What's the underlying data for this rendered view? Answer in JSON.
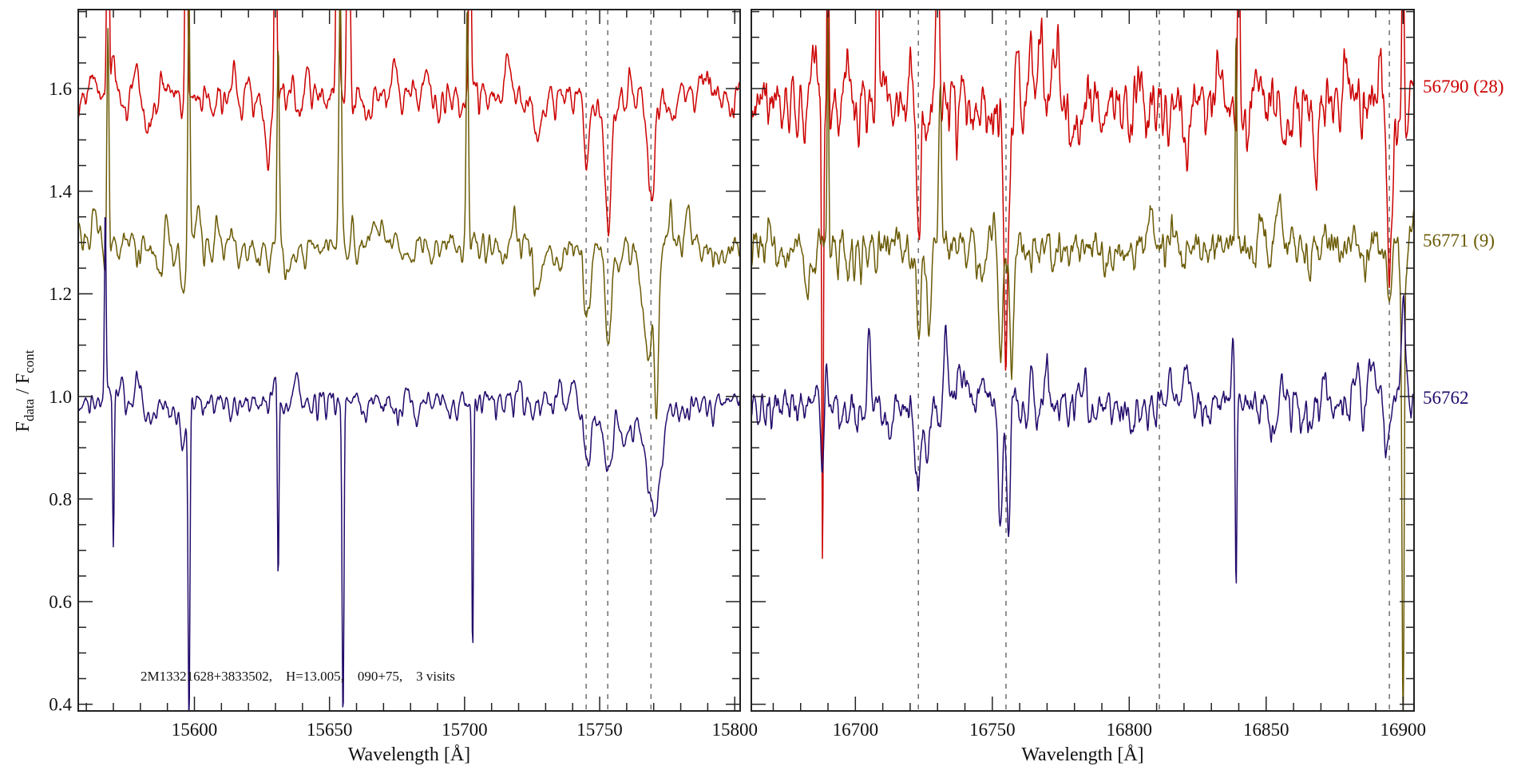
{
  "chart_data": {
    "type": "line",
    "ylabel_main": "F",
    "ylabel_sub1": "data",
    "ylabel_sep": " / F",
    "ylabel_sub2": "cont",
    "ylim": [
      0.387,
      1.754
    ],
    "yticks": [
      0.4,
      0.6,
      0.8,
      1.0,
      1.2,
      1.4,
      1.6
    ],
    "ytick_labels": [
      "0.4",
      "0.6",
      "0.8",
      "1.0",
      "1.2",
      "1.4",
      "1.6"
    ],
    "annotation": "2M13321628+3833502,    H=13.005,    090+75,    3 visits",
    "panels": [
      {
        "xlabel": "Wavelength [Å]",
        "xlim": [
          15557,
          15802
        ],
        "xticks": [
          15600,
          15650,
          15700,
          15750,
          15800
        ],
        "xtick_labels": [
          "15600",
          "15650",
          "15700",
          "15750",
          "15800"
        ],
        "marker_lines": [
          15745,
          15753,
          15769
        ]
      },
      {
        "xlabel": "Wavelength [Å]",
        "xlim": [
          16662,
          16904
        ],
        "xticks": [
          16700,
          16750,
          16800,
          16850,
          16900
        ],
        "xtick_labels": [
          "16700",
          "16750",
          "16800",
          "16850",
          "16900"
        ],
        "marker_lines": [
          16723,
          16755,
          16811,
          16895
        ]
      }
    ],
    "series": [
      {
        "name": "56790 (28)",
        "color": "#cc0000",
        "offset": 1.6,
        "seed": 11,
        "noise": [
          0.012,
          0.035
        ],
        "dip_depth": [
          0.05,
          0.09
        ],
        "features": [
          [
            [
              15568,
              0.6,
              0.4
            ],
            [
              15597,
              0.6,
              0.4
            ],
            [
              15630,
              0.6,
              0.4
            ],
            [
              15653,
              0.6,
              0.5
            ],
            [
              15657,
              0.6,
              0.5
            ],
            [
              15702,
              0.5,
              0.4
            ],
            [
              15583,
              -0.1,
              1.5
            ],
            [
              15627,
              -0.1,
              1
            ],
            [
              15745,
              -0.12,
              1.5
            ],
            [
              15753,
              -0.25,
              1.2
            ],
            [
              15769,
              -0.22,
              1.2
            ],
            [
              15727,
              -0.1,
              1.2
            ]
          ],
          [
            [
              16688,
              -0.95,
              0.3
            ],
            [
              16690,
              0.6,
              0.3
            ],
            [
              16708,
              0.5,
              0.4
            ],
            [
              16723,
              -0.35,
              0.8
            ],
            [
              16730,
              0.5,
              0.5
            ],
            [
              16755,
              -0.45,
              0.8
            ],
            [
              16840,
              0.5,
              0.4
            ],
            [
              16895,
              -0.35,
              0.8
            ],
            [
              16900,
              0.4,
              0.4
            ],
            [
              16868,
              -0.15,
              0.8
            ]
          ]
        ]
      },
      {
        "name": "56771 (9)",
        "color": "#6b5b06",
        "offset": 1.31,
        "seed": 23,
        "noise": [
          0.01,
          0.022
        ],
        "dip_depth": [
          0.05,
          0.06
        ],
        "features": [
          [
            [
              15568,
              0.45,
              0.4
            ],
            [
              15598,
              0.5,
              0.4
            ],
            [
              15631,
              0.4,
              0.4
            ],
            [
              15654,
              0.5,
              0.5
            ],
            [
              15701,
              0.45,
              0.4
            ],
            [
              15596,
              -0.1,
              0.8
            ],
            [
              15745,
              -0.15,
              1.5
            ],
            [
              15753,
              -0.2,
              1.2
            ],
            [
              15768,
              -0.22,
              2
            ],
            [
              15771,
              -0.3,
              0.8
            ],
            [
              15727,
              -0.08,
              1
            ]
          ],
          [
            [
              16690,
              0.5,
              0.3
            ],
            [
              16723,
              -0.2,
              0.8
            ],
            [
              16727,
              -0.15,
              0.6
            ],
            [
              16731,
              0.3,
              0.5
            ],
            [
              16753,
              -0.2,
              0.8
            ],
            [
              16757,
              -0.25,
              0.6
            ],
            [
              16839,
              0.45,
              0.3
            ],
            [
              16900,
              -0.95,
              0.4
            ],
            [
              16895,
              -0.1,
              0.8
            ]
          ]
        ]
      },
      {
        "name": "56762",
        "color": "#230b6b",
        "offset": 1.0,
        "seed": 37,
        "noise": [
          0.008,
          0.018
        ],
        "dip_depth": [
          0.04,
          0.05
        ],
        "features": [
          [
            [
              15570,
              -0.32,
              0.3
            ],
            [
              15598,
              -0.62,
              0.35
            ],
            [
              15631,
              -0.38,
              0.3
            ],
            [
              15655,
              -0.62,
              0.35
            ],
            [
              15703,
              -0.5,
              0.3
            ],
            [
              15567,
              0.35,
              0.3
            ],
            [
              15596,
              -0.08,
              1
            ],
            [
              15745,
              -0.1,
              2
            ],
            [
              15753,
              -0.12,
              2
            ],
            [
              15770,
              -0.2,
              2.5
            ],
            [
              15760,
              -0.06,
              4
            ]
          ],
          [
            [
              16688,
              -0.15,
              0.6
            ],
            [
              16723,
              -0.15,
              1
            ],
            [
              16726,
              -0.12,
              0.6
            ],
            [
              16705,
              0.15,
              0.6
            ],
            [
              16733,
              0.15,
              0.8
            ],
            [
              16753,
              -0.22,
              0.8
            ],
            [
              16756,
              -0.26,
              0.6
            ],
            [
              16839,
              -0.38,
              0.3
            ],
            [
              16838,
              0.15,
              0.6
            ],
            [
              16900,
              0.2,
              0.8
            ],
            [
              16894,
              -0.08,
              0.8
            ]
          ]
        ]
      }
    ]
  }
}
